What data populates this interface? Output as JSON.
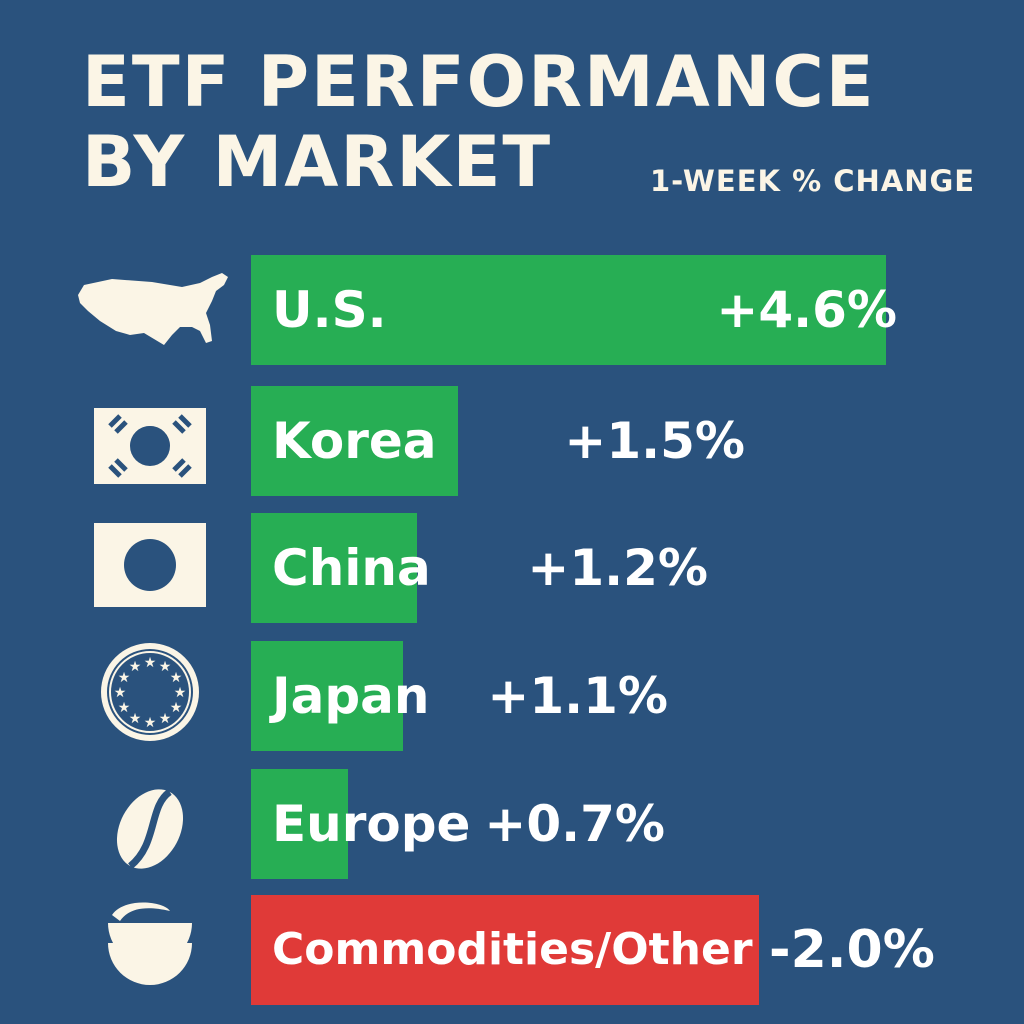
{
  "title_line1": "ETF PERFORMANCE",
  "title_line2": "BY MARKET",
  "subtitle": "1-WEEK % CHANGE",
  "colors": {
    "background": "#2a527d",
    "positive": "#27ae54",
    "negative": "#e03a38",
    "icon": "#fbf5e6",
    "text": "#ffffff"
  },
  "chart_data": {
    "type": "bar",
    "orientation": "horizontal",
    "title": "ETF PERFORMANCE BY MARKET",
    "subtitle": "1-WEEK % CHANGE",
    "xlabel": "",
    "ylabel": "",
    "unit": "%",
    "grid": false,
    "legend": "none",
    "xlim": [
      -2.5,
      5.0
    ],
    "categories": [
      "U.S.",
      "Korea",
      "China",
      "Japan",
      "Europe",
      "Commodities/Other"
    ],
    "values": [
      4.6,
      1.5,
      1.2,
      1.1,
      0.7,
      -2.0
    ],
    "value_labels": [
      "+4.6%",
      "+1.5%",
      "+1.2%",
      "+1.1%",
      "+0.7%",
      "-2.0%"
    ],
    "icons": [
      "usa-map-icon",
      "korea-flag-icon",
      "japan-flag-icon",
      "eu-stars-icon",
      "coffee-bean-icon",
      "bowl-icon"
    ]
  }
}
